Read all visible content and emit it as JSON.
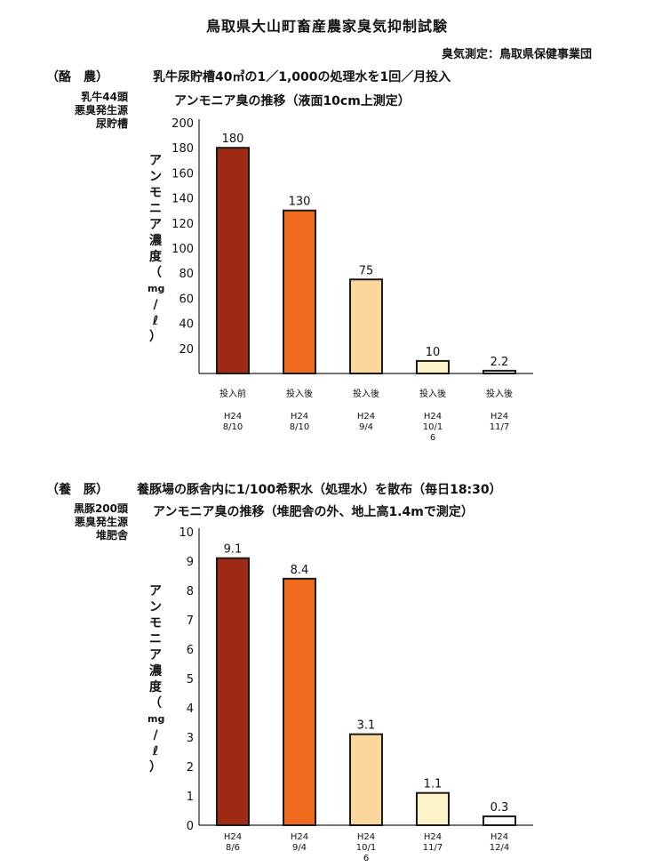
{
  "page": {
    "title": "鳥取県大山町畜産農家臭気抑制試験",
    "credit": "臭気測定：鳥取県保健事業団"
  },
  "chart_data": [
    {
      "type": "bar",
      "category": "（酪　農）",
      "header": "乳牛尿貯槽40㎥の1／1,000の処理水を1回／月投入",
      "side": [
        "乳牛44頭",
        "悪臭発生源",
        "尿貯槽"
      ],
      "title": "アンモニア臭の推移（液面10cm上測定）",
      "ylabel": "アンモニア濃度（mg/ℓ）",
      "ylabel_chars": [
        "ア",
        "ン",
        "モ",
        "ニ",
        "ア",
        "濃",
        "度",
        "（",
        "mg",
        "/",
        "ℓ",
        "）"
      ],
      "ylim": [
        0,
        200
      ],
      "yticks": [
        20,
        40,
        60,
        80,
        100,
        120,
        140,
        160,
        180,
        200
      ],
      "categories": [
        [
          "投入前",
          "H24",
          "8/10"
        ],
        [
          "投入後",
          "H24",
          "8/10"
        ],
        [
          "投入後",
          "H24",
          "9/4"
        ],
        [
          "投入後",
          "H24",
          "10/1",
          "6"
        ],
        [
          "投入後",
          "H24",
          "11/7"
        ]
      ],
      "values": [
        180,
        130,
        75,
        10,
        2.2
      ],
      "value_labels": [
        "180",
        "130",
        "75",
        "10",
        "2.2"
      ],
      "colors": [
        "#9e2a14",
        "#f06a1e",
        "#fad79a",
        "#fdf3c8",
        "#ffffff"
      ],
      "grid": false
    },
    {
      "type": "bar",
      "category": "（養　豚）",
      "header": "養豚場の豚舎内に1/100希釈水（処理水）を散布（毎日18:30）",
      "side": [
        "黒豚200頭",
        "悪臭発生源",
        "堆肥舎"
      ],
      "title": "アンモニア臭の推移（堆肥舎の外、地上高1.4mで測定）",
      "ylabel": "アンモニア濃度（mg/ℓ）",
      "ylabel_chars": [
        "ア",
        "ン",
        "モ",
        "ニ",
        "ア",
        "濃",
        "度",
        "（",
        "mg",
        "/",
        "ℓ",
        "）"
      ],
      "ylim": [
        0,
        10
      ],
      "yticks": [
        0,
        1,
        2,
        3,
        4,
        5,
        6,
        7,
        8,
        9,
        10
      ],
      "categories": [
        [
          "H24",
          "8/6"
        ],
        [
          "H24",
          "9/4"
        ],
        [
          "H24",
          "10/1",
          "6"
        ],
        [
          "H24",
          "11/7"
        ],
        [
          "H24",
          "12/4"
        ]
      ],
      "values": [
        9.1,
        8.4,
        3.1,
        1.1,
        0.3
      ],
      "value_labels": [
        "9.1",
        "8.4",
        "3.1",
        "1.1",
        "0.3"
      ],
      "colors": [
        "#9e2a14",
        "#f06a1e",
        "#fad79a",
        "#fdf3c8",
        "#ffffff"
      ],
      "grid": false
    }
  ]
}
